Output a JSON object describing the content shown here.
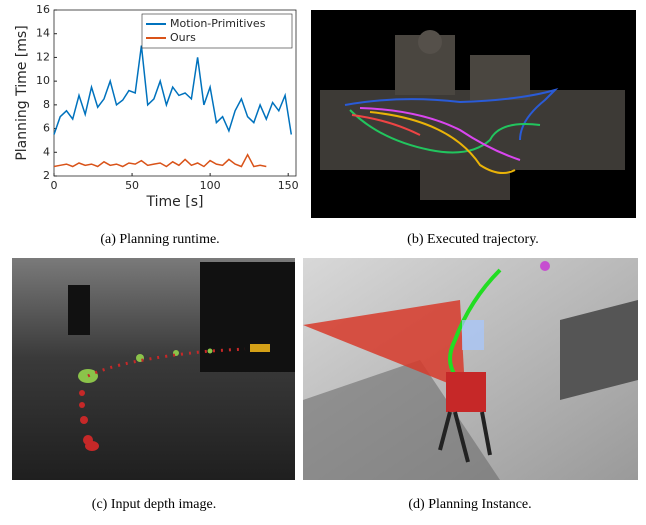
{
  "chart_data": {
    "type": "line",
    "xlabel": "Time [s]",
    "ylabel": "Planning Time [ms]",
    "caption": "(a) Planning runtime.",
    "x": [
      0,
      4,
      8,
      12,
      16,
      20,
      24,
      28,
      32,
      36,
      40,
      44,
      48,
      52,
      56,
      60,
      64,
      68,
      72,
      76,
      80,
      84,
      88,
      92,
      96,
      100,
      104,
      108,
      112,
      116,
      120,
      124,
      128,
      132,
      136,
      140,
      144,
      148,
      152
    ],
    "series": [
      {
        "name": "Motion-Primitives",
        "color": "#0072bd",
        "values": [
          5.5,
          7,
          7.5,
          6.8,
          8.8,
          7.2,
          9.5,
          7.8,
          8.5,
          10,
          8,
          8.4,
          9.2,
          9,
          13,
          8,
          8.5,
          10,
          8,
          9.5,
          8.8,
          9,
          8.5,
          12,
          8,
          9.5,
          6.5,
          7,
          5.8,
          7.5,
          8.5,
          7,
          6.5,
          8,
          6.8,
          8.2,
          7.5,
          8.8,
          5.5
        ]
      },
      {
        "name": "Ours",
        "color": "#d95319",
        "values": [
          2.8,
          2.9,
          3.0,
          2.8,
          3.1,
          2.9,
          3.0,
          2.8,
          3.2,
          2.9,
          3.0,
          2.8,
          3.1,
          3.0,
          3.3,
          2.9,
          3.0,
          3.1,
          2.8,
          3.2,
          2.9,
          3.4,
          2.9,
          3.1,
          2.8,
          3.3,
          3.0,
          2.9,
          3.4,
          3.0,
          2.8,
          3.8,
          2.8,
          2.9,
          2.8,
          null,
          null,
          null,
          null
        ]
      }
    ],
    "xlim": [
      0,
      155
    ],
    "xticks": [
      0,
      50,
      100,
      150
    ],
    "ylim": [
      2,
      16
    ],
    "yticks": [
      2,
      4,
      6,
      8,
      10,
      12,
      14,
      16
    ],
    "legend": "upper right"
  },
  "panels": [
    {
      "caption": "(b) Executed trajectory."
    },
    {
      "caption": "(c) Input depth image."
    },
    {
      "caption": "(d) Planning Instance."
    }
  ]
}
